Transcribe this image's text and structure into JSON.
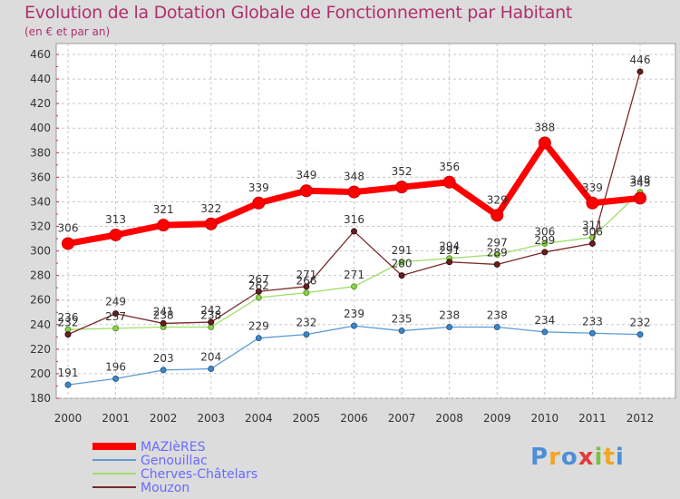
{
  "chart_data": {
    "type": "line",
    "title": "Evolution de la Dotation Globale de Fonctionnement par Habitant",
    "subtitle": "(en € et par an)",
    "xlabel": "",
    "ylabel": "",
    "categories": [
      "2000",
      "2001",
      "2002",
      "2003",
      "2004",
      "2005",
      "2006",
      "2007",
      "2008",
      "2009",
      "2010",
      "2011",
      "2012"
    ],
    "ylim": [
      180,
      460
    ],
    "yticks": [
      180,
      200,
      220,
      240,
      260,
      280,
      300,
      320,
      340,
      360,
      380,
      400,
      420,
      440,
      460
    ],
    "grid": true,
    "legend_position": "bottom-left",
    "series": [
      {
        "name": "MAZIèRES",
        "color": "#ff0000",
        "values": [
          306,
          313,
          321,
          322,
          339,
          349,
          348,
          352,
          356,
          329,
          388,
          339,
          343
        ]
      },
      {
        "name": "Genouillac",
        "color": "#5b9bd5",
        "values": [
          191,
          196,
          203,
          204,
          229,
          232,
          239,
          235,
          238,
          238,
          234,
          233,
          232
        ]
      },
      {
        "name": "Cherves-Châtelars",
        "color": "#9fde6a",
        "values": [
          236,
          237,
          238,
          238,
          262,
          266,
          271,
          291,
          294,
          297,
          306,
          311,
          348
        ]
      },
      {
        "name": "Mouzon",
        "color": "#7a2a2a",
        "values": [
          232,
          249,
          241,
          242,
          267,
          271,
          316,
          280,
          291,
          289,
          299,
          306,
          446
        ]
      }
    ]
  },
  "logo": {
    "text": "Proxiti"
  }
}
